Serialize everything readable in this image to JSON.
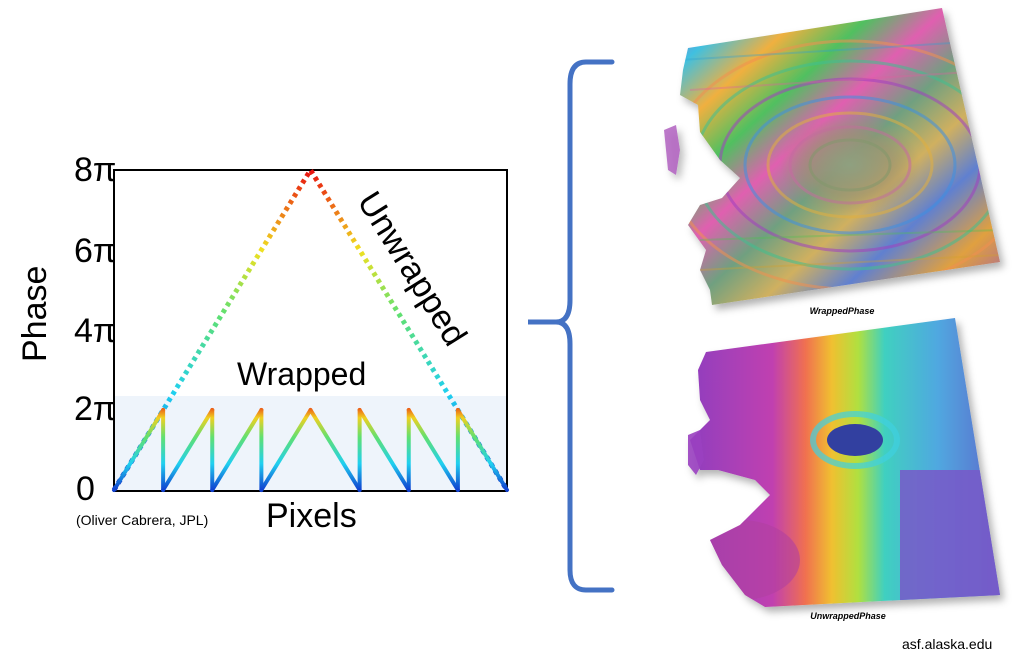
{
  "chart_data": {
    "type": "line",
    "title": "",
    "xlabel": "Pixels",
    "ylabel": "Phase",
    "ylim": [
      0,
      8
    ],
    "y_unit": "π",
    "yticks": [
      "0",
      "2π",
      "4π",
      "6π",
      "8π"
    ],
    "series": [
      {
        "name": "Unwrapped",
        "x": [
          0,
          4,
          8
        ],
        "y": [
          0,
          8,
          0
        ]
      },
      {
        "name": "Wrapped",
        "x": [
          0,
          1,
          1,
          2,
          2,
          3,
          3,
          4,
          5,
          5,
          6,
          6,
          7,
          7,
          8
        ],
        "y": [
          0,
          2,
          0,
          2,
          0,
          2,
          0,
          2,
          0,
          2,
          0,
          2,
          0,
          2,
          0
        ]
      }
    ]
  },
  "labels": {
    "wrapped": "Wrapped",
    "unwrapped": "Unwrapped",
    "credit": "(Oliver Cabrera, JPL)",
    "source": "asf.alaska.edu"
  },
  "panels": {
    "top_caption": "WrappedPhase",
    "bottom_caption": "UnwrappedPhase"
  },
  "colors": {
    "bracket": "#4472c4",
    "wrapped_band": "#eef4fb"
  }
}
